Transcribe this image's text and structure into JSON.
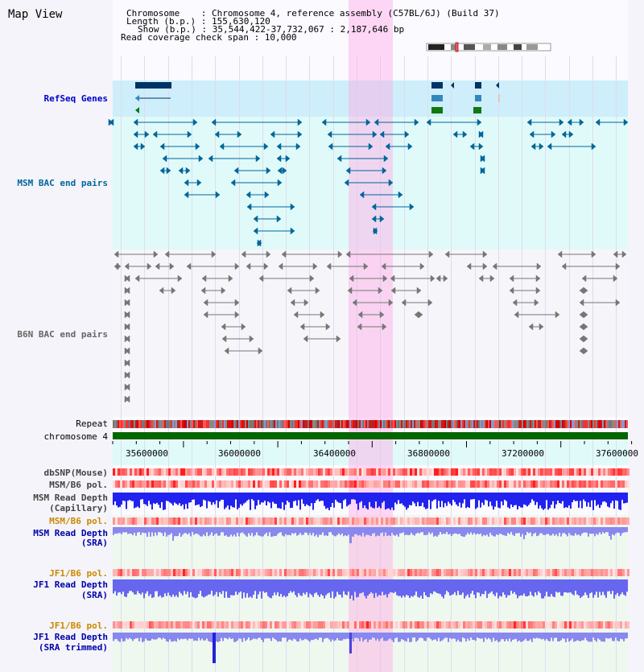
{
  "header": {
    "title": "Map View",
    "chromosome_line": "Chromosome    : Chromosome 4, reference assembly (C57BL/6J) (Build 37)",
    "length_line": "Length (b.p.) : 155,630,120",
    "show_line": "Show (b.p.) : 35,544,422-37,732,067 : 2,187,646 bp",
    "coverage_line": "Read coverage check span : 10,000"
  },
  "tracks": {
    "refseq": "RefSeq Genes",
    "msm_bac": "MSM BAC end pairs",
    "b6n_bac": "B6N BAC end pairs",
    "repeat": "Repeat",
    "chromosome": "chromosome 4",
    "dbsnp": "dbSNP(Mouse)",
    "msm_pol_cap": "MSM/B6 pol.",
    "msm_depth_cap_1": "MSM Read Depth",
    "msm_depth_cap_2": "(Capillary)",
    "msm_pol_sra": "MSM/B6 pol.",
    "msm_depth_sra_1": "MSM Read Depth",
    "msm_depth_sra_2": "(SRA)",
    "jf1_pol": "JF1/B6 pol.",
    "jf1_depth_1": "JF1 Read Depth",
    "jf1_depth_2": "(SRA)",
    "jf1t_pol": "JF1/B6 pol.",
    "jf1t_depth_1": "JF1 Read Depth",
    "jf1t_depth_2": "(SRA trimmed)"
  },
  "axis": {
    "ticks": [
      "35600000",
      "36000000",
      "36400000",
      "36800000",
      "37200000",
      "37600000"
    ]
  },
  "colors": {
    "refseq_label": "#0000cc",
    "msm_label": "#006699",
    "b6n_label": "#666666",
    "pol_label": "#cc8800",
    "depth_label": "#0000aa",
    "highlight": "#ffccee",
    "chromosome_bar": "#006600"
  }
}
